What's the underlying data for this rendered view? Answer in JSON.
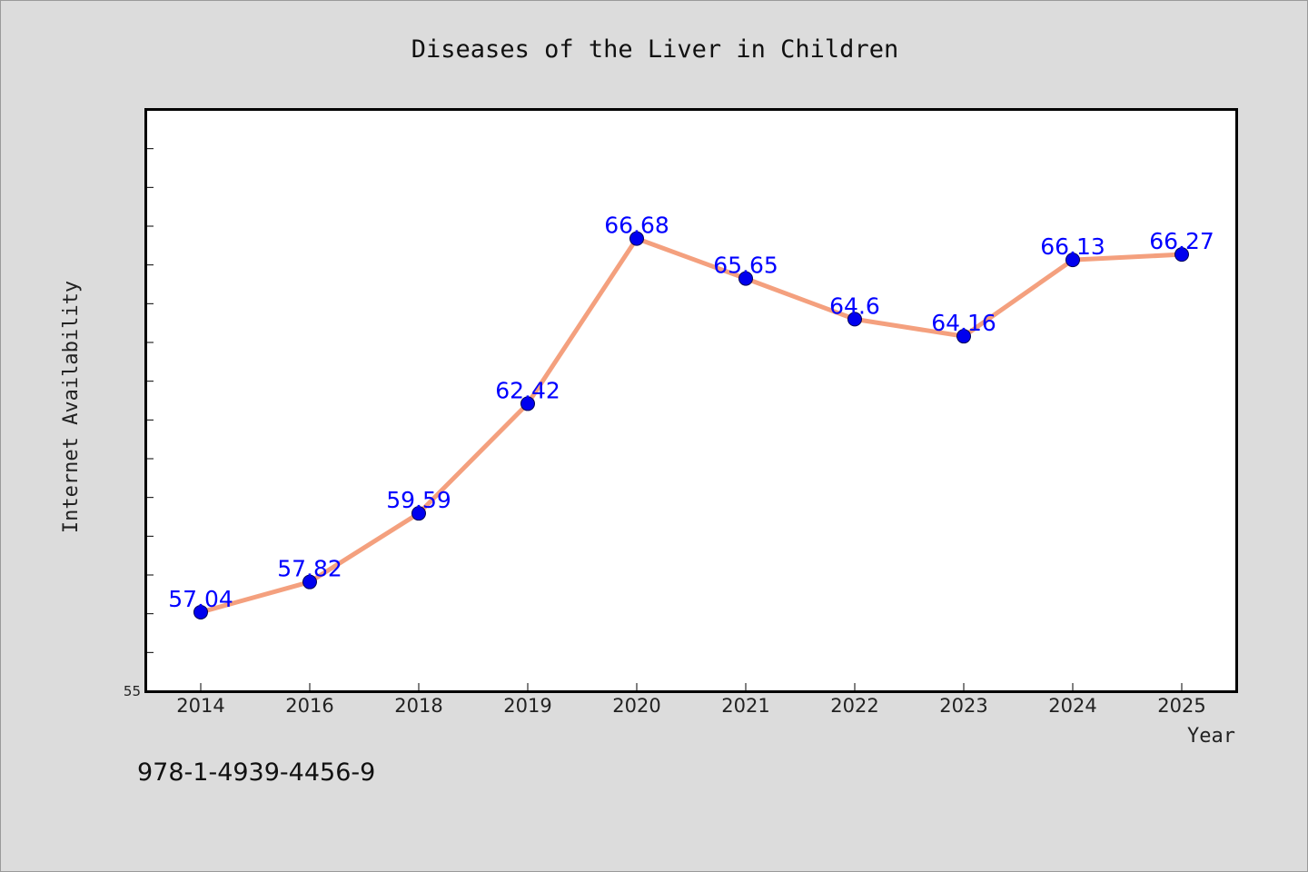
{
  "colors": {
    "background": "#dcdcdc",
    "plot_background": "#ffffff",
    "line": "#f4a07e",
    "marker": "#0000ee",
    "data_label": "#0000ff"
  },
  "chart_data": {
    "type": "line",
    "title": "Diseases of the Liver in Children",
    "xlabel": "Year",
    "ylabel": "Internet Availability",
    "categories": [
      "2014",
      "2016",
      "2018",
      "2019",
      "2020",
      "2021",
      "2022",
      "2023",
      "2024",
      "2025"
    ],
    "values": [
      57.04,
      57.82,
      59.59,
      62.42,
      66.68,
      65.65,
      64.6,
      64.16,
      66.13,
      66.27
    ],
    "data_labels": [
      "57.04",
      "57.82",
      "59.59",
      "62.42",
      "66.68",
      "65.65",
      "64.6",
      "64.16",
      "66.13",
      "66.27"
    ],
    "ylim": [
      55,
      70
    ],
    "y_tick_labels": [
      "55"
    ],
    "y_minor_step": 1,
    "grid": false,
    "legend": "none"
  },
  "footer": {
    "isbn": "978-1-4939-4456-9"
  }
}
